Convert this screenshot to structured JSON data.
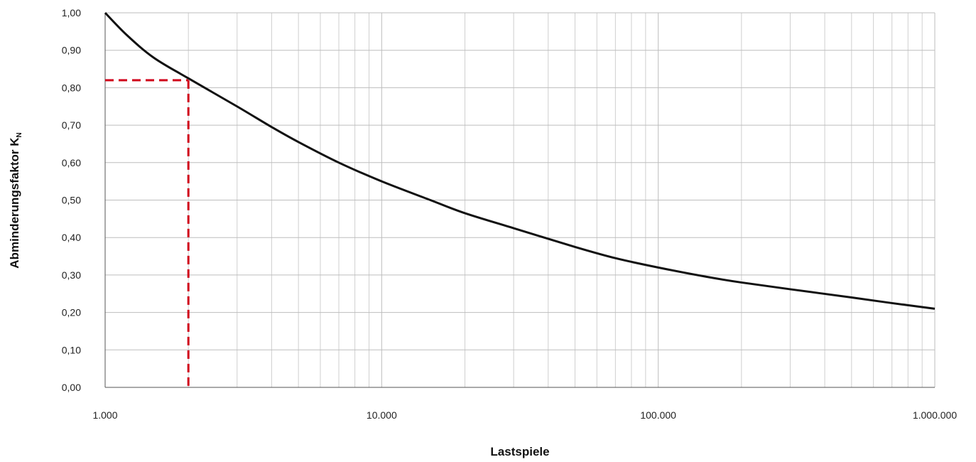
{
  "chart_data": {
    "type": "line",
    "xscale": "log",
    "xlim": [
      1000,
      1000000
    ],
    "ylim": [
      0,
      1
    ],
    "grid": true,
    "xlabel": "Lastspiele",
    "ylabel": "Abminderungsfaktor K",
    "ylabel_subscript": "N",
    "x_ticks": [
      1000,
      10000,
      100000,
      1000000
    ],
    "x_tick_labels": [
      "1.000",
      "10.000",
      "100.000",
      "1.000.000"
    ],
    "y_ticks": [
      0,
      0.1,
      0.2,
      0.3,
      0.4,
      0.5,
      0.6,
      0.7,
      0.8,
      0.9,
      1.0
    ],
    "y_tick_labels": [
      "0,00",
      "0,10",
      "0,20",
      "0,30",
      "0,40",
      "0,50",
      "0,60",
      "0,70",
      "0,80",
      "0,90",
      "1,00"
    ],
    "series": [
      {
        "color": "#111111",
        "style": "solid",
        "x": [
          1000,
          1200,
          1500,
          2000,
          3000,
          4000,
          5000,
          7000,
          10000,
          15000,
          20000,
          30000,
          50000,
          70000,
          100000,
          150000,
          200000,
          300000,
          500000,
          700000,
          1000000
        ],
        "y": [
          1.0,
          0.94,
          0.88,
          0.825,
          0.75,
          0.695,
          0.655,
          0.6,
          0.55,
          0.5,
          0.465,
          0.425,
          0.375,
          0.345,
          0.32,
          0.295,
          0.28,
          0.262,
          0.24,
          0.225,
          0.21
        ]
      }
    ],
    "reference_lines": [
      {
        "color": "#d0021b",
        "style": "dashed",
        "x": [
          1000,
          2000
        ],
        "y": [
          0.82,
          0.82
        ]
      },
      {
        "color": "#d0021b",
        "style": "dashed",
        "x": [
          2000,
          2000
        ],
        "y": [
          0.82,
          0
        ]
      }
    ]
  }
}
